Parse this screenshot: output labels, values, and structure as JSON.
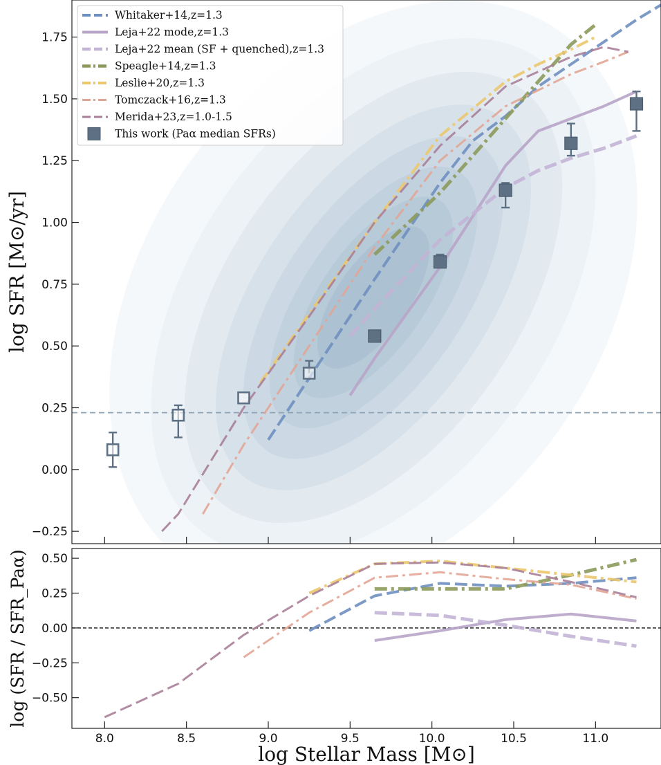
{
  "chart_data": [
    {
      "type": "line",
      "panel": "main",
      "xlabel": "log Stellar Mass [M⊙]",
      "ylabel": "log SFR [M⊙/yr]",
      "xlim": [
        7.8,
        11.4
      ],
      "ylim": [
        -0.3,
        1.9
      ],
      "xticks": [
        8.0,
        8.5,
        9.0,
        9.5,
        10.0,
        10.5,
        11.0
      ],
      "yticks": [
        -0.25,
        0.0,
        0.25,
        0.5,
        0.75,
        1.0,
        1.25,
        1.5,
        1.75
      ],
      "ytick_labels": [
        "−0.25",
        "0.00",
        "0.25",
        "0.50",
        "0.75",
        "1.00",
        "1.25",
        "1.50",
        "1.75"
      ],
      "xtick_labels": [
        "8.0",
        "8.5",
        "9.0",
        "9.5",
        "10.0",
        "10.5",
        "11.0"
      ],
      "hline": {
        "y": 0.23,
        "color": "#8ea3b5",
        "style": "dashed"
      },
      "legend_position": "top-left",
      "series": [
        {
          "name": "Whitaker+14,z=1.3",
          "color": "#6f8fc0",
          "style": "dashed",
          "width": 4,
          "x": [
            9.0,
            9.25,
            9.65,
            10.05,
            10.25,
            10.45,
            10.65,
            10.85,
            11.05,
            11.25,
            11.4
          ],
          "y": [
            0.12,
            0.37,
            0.77,
            1.16,
            1.33,
            1.43,
            1.55,
            1.64,
            1.73,
            1.82,
            1.88
          ]
        },
        {
          "name": "Leja+22 mode,z=1.3",
          "color": "#b8a4c8",
          "style": "solid",
          "width": 4,
          "x": [
            9.5,
            9.65,
            10.05,
            10.45,
            10.65,
            10.85,
            11.05,
            11.25
          ],
          "y": [
            0.3,
            0.45,
            0.82,
            1.23,
            1.37,
            1.42,
            1.47,
            1.53
          ]
        },
        {
          "name": "Leja+22 mean (SF + quenched),z=1.3",
          "color": "#c3b4d6",
          "style": "dashed",
          "width": 5,
          "x": [
            9.5,
            9.65,
            10.05,
            10.45,
            10.65,
            10.85,
            11.05,
            11.25
          ],
          "y": [
            0.54,
            0.65,
            0.93,
            1.14,
            1.21,
            1.26,
            1.3,
            1.35
          ]
        },
        {
          "name": "Speagle+14,z=1.3",
          "color": "#8c9a5b",
          "style": "dashdot",
          "width": 5,
          "x": [
            9.65,
            10.05,
            10.45,
            10.65,
            10.85,
            11.0
          ],
          "y": [
            0.87,
            1.12,
            1.42,
            1.57,
            1.72,
            1.8
          ]
        },
        {
          "name": "Leslie+20,z=1.3",
          "color": "#ebc86e",
          "style": "dashdot",
          "width": 4,
          "x": [
            8.95,
            9.25,
            9.65,
            10.05,
            10.45,
            10.65,
            10.85,
            11.0
          ],
          "y": [
            0.35,
            0.63,
            1.0,
            1.35,
            1.57,
            1.64,
            1.7,
            1.75
          ]
        },
        {
          "name": "Tomczack+16,z=1.3",
          "color": "#e2a595",
          "style": "dashdot",
          "width": 3,
          "x": [
            8.6,
            8.85,
            9.25,
            9.65,
            10.05,
            10.45,
            10.85,
            11.05,
            11.2
          ],
          "y": [
            -0.18,
            0.1,
            0.5,
            0.9,
            1.25,
            1.47,
            1.6,
            1.65,
            1.69
          ]
        },
        {
          "name": "Merida+23,z=1.0-1.5",
          "color": "#a87f98",
          "style": "dashed",
          "width": 3,
          "x": [
            8.35,
            8.45,
            8.85,
            9.25,
            9.65,
            10.05,
            10.45,
            10.85,
            11.05,
            11.2
          ],
          "y": [
            -0.25,
            -0.18,
            0.25,
            0.62,
            1.0,
            1.31,
            1.55,
            1.67,
            1.71,
            1.69
          ]
        }
      ],
      "points": {
        "name": "This work (Paα median SFRs)",
        "color": "#5e7184",
        "open_x": [
          8.05,
          8.45,
          8.85,
          9.25
        ],
        "open_y": [
          0.08,
          0.22,
          0.29,
          0.39
        ],
        "open_err_lo": [
          0.07,
          0.09,
          0.0,
          0.0
        ],
        "open_err_hi": [
          0.07,
          0.04,
          0.0,
          0.05
        ],
        "filled_x": [
          9.65,
          10.05,
          10.45,
          10.85,
          11.25
        ],
        "filled_y": [
          0.54,
          0.84,
          1.13,
          1.32,
          1.48
        ],
        "filled_err_lo": [
          0.0,
          0.0,
          0.07,
          0.05,
          0.11
        ],
        "filled_err_hi": [
          0.0,
          0.03,
          0.03,
          0.08,
          0.05
        ]
      }
    },
    {
      "type": "line",
      "panel": "residual",
      "ylabel": "log (SFR / SFR_Paα)",
      "xlim": [
        7.8,
        11.4
      ],
      "ylim": [
        -0.72,
        0.57
      ],
      "xticks": [
        8.0,
        8.5,
        9.0,
        9.5,
        10.0,
        10.5,
        11.0
      ],
      "xtick_labels": [
        "8.0",
        "8.5",
        "9.0",
        "9.5",
        "10.0",
        "10.5",
        "11.0"
      ],
      "yticks": [
        -0.5,
        -0.25,
        0.0,
        0.25,
        0.5
      ],
      "ytick_labels": [
        "−0.50",
        "−0.25",
        "0.00",
        "0.25",
        "0.50"
      ],
      "hline": {
        "y": 0.0,
        "color": "#222222",
        "style": "dashed"
      },
      "series": [
        {
          "ref": "Whitaker+14,z=1.3",
          "color": "#6f8fc0",
          "style": "dashed",
          "width": 4,
          "x": [
            9.25,
            9.65,
            10.05,
            10.45,
            10.85,
            11.25
          ],
          "y": [
            -0.02,
            0.23,
            0.32,
            0.3,
            0.32,
            0.36
          ]
        },
        {
          "ref": "Leja+22 mode,z=1.3",
          "color": "#b8a4c8",
          "style": "solid",
          "width": 4,
          "x": [
            9.65,
            10.05,
            10.45,
            10.85,
            11.25
          ],
          "y": [
            -0.09,
            -0.02,
            0.06,
            0.1,
            0.05
          ]
        },
        {
          "ref": "Leja+22 mean (SF + quenched),z=1.3",
          "color": "#c3b4d6",
          "style": "dashed",
          "width": 5,
          "x": [
            9.65,
            10.05,
            10.45,
            10.85,
            11.25
          ],
          "y": [
            0.11,
            0.09,
            0.02,
            -0.06,
            -0.13
          ]
        },
        {
          "ref": "Speagle+14,z=1.3",
          "color": "#8c9a5b",
          "style": "dashdot",
          "width": 5,
          "x": [
            9.65,
            10.05,
            10.45,
            10.85,
            11.25
          ],
          "y": [
            0.28,
            0.28,
            0.28,
            0.38,
            0.49
          ]
        },
        {
          "ref": "Leslie+20,z=1.3",
          "color": "#ebc86e",
          "style": "dashdot",
          "width": 4,
          "x": [
            9.25,
            9.65,
            10.05,
            10.45,
            10.85,
            11.25
          ],
          "y": [
            0.25,
            0.46,
            0.48,
            0.43,
            0.38,
            0.33
          ]
        },
        {
          "ref": "Tomczack+16,z=1.3",
          "color": "#e2a595",
          "style": "dashdot",
          "width": 3,
          "x": [
            8.85,
            9.25,
            9.65,
            10.05,
            10.45,
            10.85,
            11.25
          ],
          "y": [
            -0.21,
            0.11,
            0.36,
            0.4,
            0.35,
            0.31,
            0.21
          ]
        },
        {
          "ref": "Merida+23,z=1.0-1.5",
          "color": "#a87f98",
          "style": "dashed",
          "width": 3,
          "x": [
            8.0,
            8.45,
            8.85,
            9.25,
            9.65,
            10.05,
            10.45,
            10.85,
            11.25
          ],
          "y": [
            -0.64,
            -0.4,
            -0.05,
            0.23,
            0.46,
            0.47,
            0.43,
            0.33,
            0.22
          ]
        }
      ]
    }
  ]
}
